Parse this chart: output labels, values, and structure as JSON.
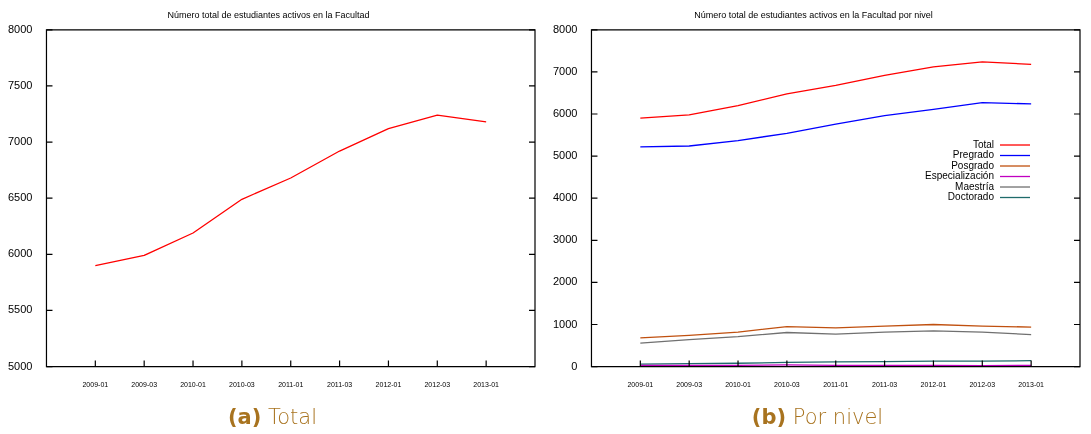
{
  "chart_data": [
    {
      "type": "line",
      "title": "Número total de estudiantes activos en la Facultad",
      "categories": [
        "2009-01",
        "2009-03",
        "2010-01",
        "2010-03",
        "2011-01",
        "2011-03",
        "2012-01",
        "2012-03",
        "2013-01"
      ],
      "ylim": [
        5000,
        8000
      ],
      "yticks": [
        5000,
        5500,
        6000,
        6500,
        7000,
        7500,
        8000
      ],
      "legend": false,
      "annotations": [
        "(a) Total"
      ],
      "series": [
        {
          "color": "#ff0000",
          "values": [
            5900,
            5990,
            6190,
            6490,
            6680,
            6920,
            7120,
            7240,
            7180
          ]
        }
      ]
    },
    {
      "type": "line",
      "title": "Número total de estudiantes activos en la Facultad por nivel",
      "categories": [
        "2009-01",
        "2009-03",
        "2010-01",
        "2010-03",
        "2011-01",
        "2011-03",
        "2012-01",
        "2012-03",
        "2013-01"
      ],
      "ylim": [
        0,
        8000
      ],
      "yticks": [
        0,
        1000,
        2000,
        3000,
        4000,
        5000,
        6000,
        7000,
        8000
      ],
      "legend": "right",
      "annotations": [
        "(b) Por nivel"
      ],
      "series": [
        {
          "name": "Total",
          "color": "#ff0000",
          "values": [
            5900,
            5980,
            6200,
            6480,
            6680,
            6920,
            7120,
            7240,
            7180
          ]
        },
        {
          "name": "Pregrado",
          "color": "#0000ff",
          "values": [
            5220,
            5240,
            5370,
            5540,
            5760,
            5960,
            6110,
            6270,
            6240
          ]
        },
        {
          "name": "Posgrado",
          "color": "#c0500f",
          "values": [
            680,
            740,
            820,
            950,
            920,
            960,
            1000,
            960,
            940
          ]
        },
        {
          "name": "Especialización",
          "color": "#c000c0",
          "values": [
            30,
            30,
            30,
            40,
            30,
            30,
            30,
            20,
            30
          ]
        },
        {
          "name": "Maestría",
          "color": "#707070",
          "values": [
            560,
            640,
            710,
            810,
            770,
            820,
            850,
            820,
            760
          ]
        },
        {
          "name": "Doctorado",
          "color": "#1f6b6b",
          "values": [
            60,
            70,
            80,
            100,
            110,
            120,
            130,
            130,
            140
          ]
        }
      ]
    }
  ]
}
